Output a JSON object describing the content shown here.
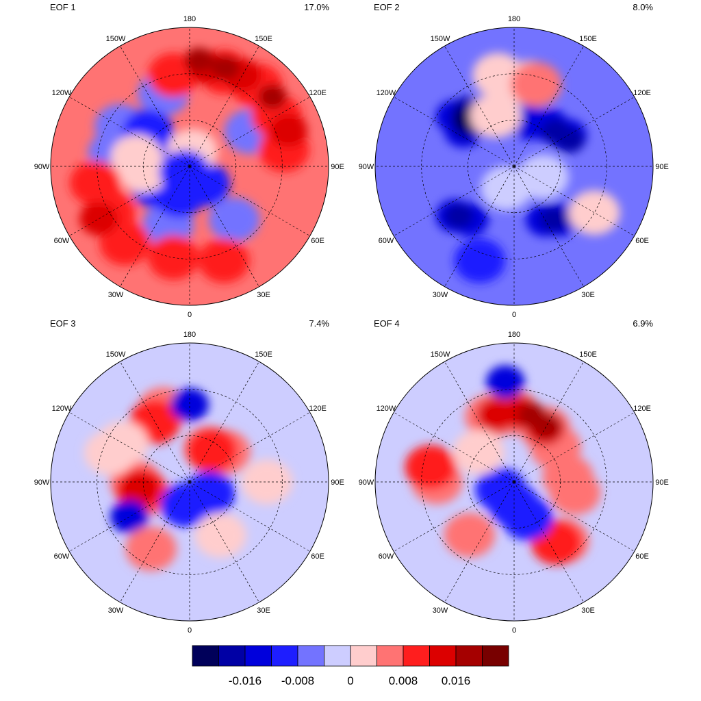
{
  "panels": [
    {
      "id": "eof1",
      "title": "EOF 1",
      "variance": "17.0%",
      "background_level": 7,
      "blobs": [
        {
          "level": 4,
          "points": [
            [
              40,
              -100
            ],
            [
              50,
              -20
            ],
            [
              45,
              40
            ],
            [
              45,
              120
            ],
            [
              40,
              -160
            ],
            [
              38,
              -120
            ]
          ]
        },
        {
          "level": 3,
          "points": [
            [
              55,
              -130
            ],
            [
              58,
              -110
            ]
          ]
        },
        {
          "level": 3,
          "points": [
            [
              65,
              -60
            ],
            [
              70,
              -20
            ],
            [
              75,
              40
            ]
          ]
        },
        {
          "level": 6,
          "points": [
            [
              55,
              -100
            ],
            [
              60,
              -85
            ]
          ]
        },
        {
          "level": 6,
          "points": [
            [
              80,
              170
            ]
          ]
        },
        {
          "level": 3,
          "points": [
            [
              85,
              -40
            ]
          ]
        },
        {
          "level": 8,
          "points": [
            [
              25,
              120
            ],
            [
              25,
              160
            ],
            [
              30,
              -170
            ],
            [
              28,
              100
            ],
            [
              22,
              140
            ]
          ]
        },
        {
          "level": 9,
          "points": [
            [
              22,
              150
            ],
            [
              25,
              170
            ],
            [
              22,
              110
            ]
          ]
        },
        {
          "level": 10,
          "points": [
            [
              22,
              160
            ],
            [
              20,
              130
            ],
            [
              21,
              175
            ]
          ]
        },
        {
          "level": 8,
          "points": [
            [
              30,
              -60
            ],
            [
              28,
              -80
            ],
            [
              25,
              -40
            ]
          ]
        },
        {
          "level": 9,
          "points": [
            [
              22,
              -60
            ]
          ]
        },
        {
          "level": 8,
          "points": [
            [
              25,
              20
            ],
            [
              30,
              -10
            ]
          ]
        }
      ]
    },
    {
      "id": "eof2",
      "title": "EOF 2",
      "variance": "8.0%",
      "background_level": 4,
      "blobs": [
        {
          "level": 2,
          "points": [
            [
              45,
              -140
            ],
            [
              50,
              -125
            ],
            [
              40,
              -130
            ]
          ]
        },
        {
          "level": 1,
          "points": [
            [
              45,
              -135
            ],
            [
              50,
              -130
            ],
            [
              42,
              -140
            ]
          ]
        },
        {
          "level": 0,
          "points": [
            [
              47,
              -135
            ]
          ]
        },
        {
          "level": 2,
          "points": [
            [
              55,
              140
            ],
            [
              50,
              120
            ],
            [
              60,
              160
            ]
          ]
        },
        {
          "level": 1,
          "points": [
            [
              55,
              130
            ],
            [
              50,
              115
            ]
          ]
        },
        {
          "level": 2,
          "points": [
            [
              40,
              -50
            ],
            [
              45,
              -40
            ]
          ]
        },
        {
          "level": 1,
          "points": [
            [
              42,
              -48
            ]
          ]
        },
        {
          "level": 2,
          "points": [
            [
              45,
              40
            ],
            [
              50,
              30
            ]
          ]
        },
        {
          "level": 1,
          "points": [
            [
              47,
              37
            ]
          ]
        },
        {
          "level": 3,
          "points": [
            [
              25,
              -20
            ]
          ]
        },
        {
          "level": 6,
          "points": [
            [
              35,
              170
            ],
            [
              30,
              -170
            ]
          ]
        },
        {
          "level": 7,
          "points": [
            [
              35,
              165
            ]
          ]
        },
        {
          "level": 6,
          "points": [
            [
              55,
              -160
            ]
          ]
        },
        {
          "level": 6,
          "points": [
            [
              30,
              60
            ]
          ]
        },
        {
          "level": 5,
          "points": [
            [
              75,
              -20
            ],
            [
              70,
              70
            ]
          ]
        }
      ]
    },
    {
      "id": "eof3",
      "title": "EOF 3",
      "variance": "7.4%",
      "background_level": 5,
      "blobs": [
        {
          "level": 7,
          "points": [
            [
              45,
              -150
            ],
            [
              40,
              -160
            ]
          ]
        },
        {
          "level": 8,
          "points": [
            [
              45,
              -150
            ]
          ]
        },
        {
          "level": 7,
          "points": [
            [
              65,
              150
            ],
            [
              60,
              130
            ]
          ]
        },
        {
          "level": 8,
          "points": [
            [
              65,
              145
            ]
          ]
        },
        {
          "level": 7,
          "points": [
            [
              60,
              -75
            ],
            [
              55,
              -90
            ]
          ]
        },
        {
          "level": 8,
          "points": [
            [
              58,
              -80
            ]
          ]
        },
        {
          "level": 9,
          "points": [
            [
              57,
              -82
            ]
          ]
        },
        {
          "level": 2,
          "points": [
            [
              45,
              -60
            ]
          ]
        },
        {
          "level": 2,
          "points": [
            [
              40,
              180
            ]
          ]
        },
        {
          "level": 3,
          "points": [
            [
              75,
              -10
            ],
            [
              75,
              60
            ]
          ]
        },
        {
          "level": 6,
          "points": [
            [
              50,
              30
            ],
            [
              40,
              90
            ]
          ]
        },
        {
          "level": 7,
          "points": [
            [
              40,
              -30
            ]
          ]
        },
        {
          "level": 6,
          "points": [
            [
              35,
              -110
            ],
            [
              40,
              -120
            ]
          ]
        }
      ]
    },
    {
      "id": "eof4",
      "title": "EOF 4",
      "variance": "6.9%",
      "background_level": 5,
      "blobs": [
        {
          "level": 7,
          "points": [
            [
              45,
              180
            ],
            [
              50,
              150
            ],
            [
              45,
              -160
            ],
            [
              55,
              130
            ]
          ]
        },
        {
          "level": 9,
          "points": [
            [
              45,
              175
            ],
            [
              50,
              150
            ],
            [
              45,
              -165
            ]
          ]
        },
        {
          "level": 10,
          "points": [
            [
              45,
              165
            ],
            [
              48,
              150
            ]
          ]
        },
        {
          "level": 7,
          "points": [
            [
              35,
              -100
            ],
            [
              40,
              -90
            ]
          ]
        },
        {
          "level": 8,
          "points": [
            [
              35,
              -100
            ]
          ]
        },
        {
          "level": 7,
          "points": [
            [
              45,
              -40
            ],
            [
              40,
              40
            ]
          ]
        },
        {
          "level": 8,
          "points": [
            [
              42,
              35
            ]
          ]
        },
        {
          "level": 7,
          "points": [
            [
              55,
              95
            ],
            [
              50,
              80
            ]
          ]
        },
        {
          "level": 3,
          "points": [
            [
              75,
              0
            ],
            [
              80,
              -60
            ],
            [
              65,
              20
            ]
          ]
        },
        {
          "level": 2,
          "points": [
            [
              25,
              -175
            ]
          ]
        },
        {
          "level": 6,
          "points": [
            [
              60,
              -130
            ]
          ]
        }
      ]
    }
  ],
  "lon_labels": [
    {
      "text": "180",
      "lon": 180
    },
    {
      "text": "150E",
      "lon": 150
    },
    {
      "text": "120E",
      "lon": 120
    },
    {
      "text": "90E",
      "lon": 90
    },
    {
      "text": "60E",
      "lon": 60
    },
    {
      "text": "30E",
      "lon": 30
    },
    {
      "text": "0",
      "lon": 0
    },
    {
      "text": "30W",
      "lon": -30
    },
    {
      "text": "60W",
      "lon": -60
    },
    {
      "text": "90W",
      "lon": -90
    },
    {
      "text": "120W",
      "lon": -120
    },
    {
      "text": "150W",
      "lon": -150
    }
  ],
  "colorbar": {
    "colors": [
      "#00005a",
      "#0000a5",
      "#0000dc",
      "#1e1eff",
      "#7373ff",
      "#cdcdff",
      "#ffcdcd",
      "#ff7373",
      "#ff1e1e",
      "#dc0000",
      "#a50000",
      "#780000"
    ],
    "tick_labels": [
      {
        "text": "-0.016",
        "boundary": 2
      },
      {
        "text": "-0.008",
        "boundary": 4
      },
      {
        "text": "0",
        "boundary": 6
      },
      {
        "text": "0.008",
        "boundary": 8
      },
      {
        "text": "0.016",
        "boundary": 10
      }
    ]
  }
}
